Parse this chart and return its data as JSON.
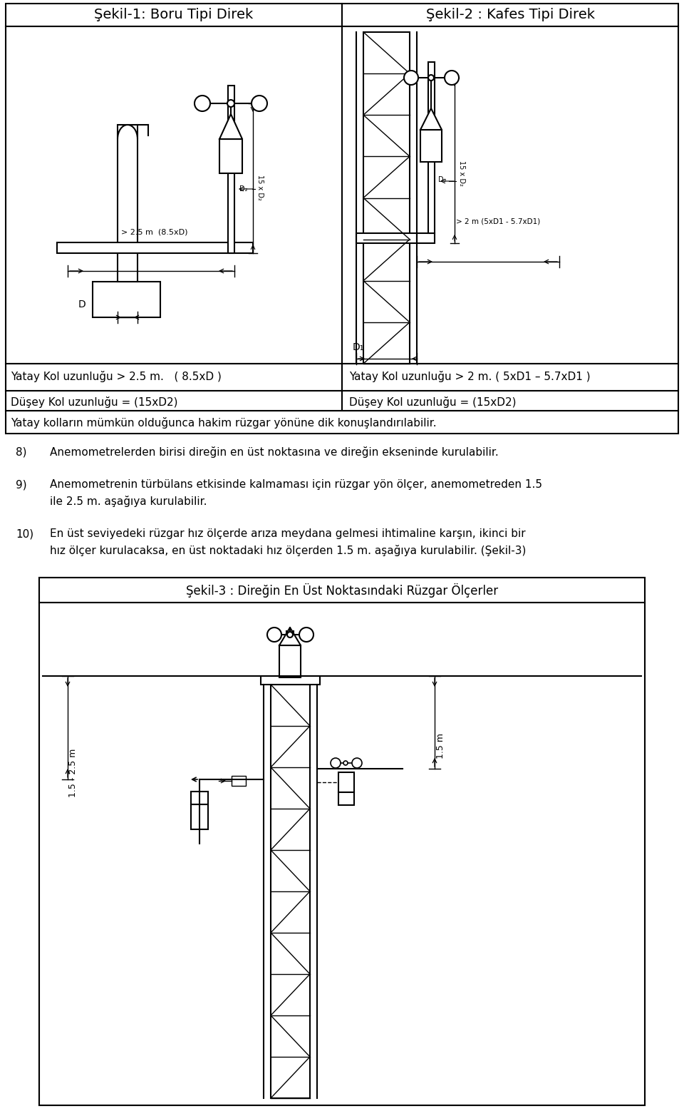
{
  "bg_color": "#ffffff",
  "title1": "Şekil-1: Boru Tipi Direk",
  "title2": "Şekil-2 : Kafes Tipi Direk",
  "title3": "Şekil-3 : Direğin En Üst Noktasındaki Rüzgar Ölçerler",
  "row1_label_left": "Yatay Kol uzunluğu > 2.5 m.   ( 8.5xD )",
  "row1_label_right": "Yatay Kol uzunluğu > 2 m. ( 5xD1 – 5.7xD1 )",
  "row2_label_left": "Düşey Kol uzunluğu = (15xD2)",
  "row2_label_right": "Düşey Kol uzunluğu = (15xD2)",
  "row3_label": "Yatay kolların mümkün olduğunca hakim rüzgar yönüne dik konuşlandırılabilir.",
  "item8_num": "8)",
  "item8_text": "Anemometrelerden birisi direğin en üst noktasına ve direğin ekseninde kurulabilir.",
  "item9_num": "9)",
  "item9_line1": "Anemometrenin türbülans etkisinde kalmaması için rüzgar yön ölçer, anemometreden 1.5",
  "item9_line2": "ile 2.5 m. aşağıya kurulabilir.",
  "item10_num": "10)",
  "item10_line1": "En üst seviyedeki rüzgar hız ölçerde arıza meydana gelmesi ihtimaline karşın, ikinci bir",
  "item10_line2": "hız ölçer kurulacaksa, en üst noktadaki hız ölçerden 1.5 m. aşağıya kurulabilir. (Şekil-3)",
  "font_size_title": 14,
  "font_size_body": 11,
  "font_size_small": 7
}
